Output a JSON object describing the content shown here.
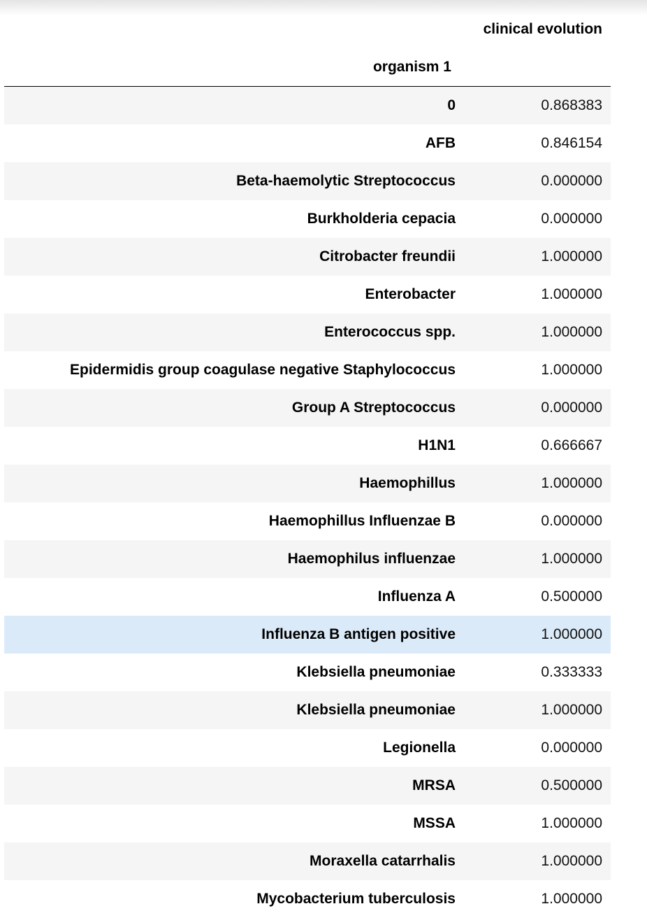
{
  "table": {
    "column_header": "clinical evolution",
    "index_name": "organism 1",
    "rows": [
      {
        "label": "0",
        "value": "0.868383"
      },
      {
        "label": "AFB",
        "value": "0.846154"
      },
      {
        "label": "Beta-haemolytic Streptococcus",
        "value": "0.000000"
      },
      {
        "label": "Burkholderia cepacia",
        "value": "0.000000"
      },
      {
        "label": "Citrobacter freundii",
        "value": "1.000000"
      },
      {
        "label": "Enterobacter",
        "value": "1.000000"
      },
      {
        "label": "Enterococcus spp.",
        "value": "1.000000"
      },
      {
        "label": "Epidermidis group coagulase negative Staphylococcus",
        "value": "1.000000"
      },
      {
        "label": "Group A Streptococcus",
        "value": "0.000000"
      },
      {
        "label": "H1N1",
        "value": "0.666667"
      },
      {
        "label": "Haemophillus",
        "value": "1.000000"
      },
      {
        "label": "Haemophillus Influenzae B",
        "value": "0.000000"
      },
      {
        "label": "Haemophilus influenzae",
        "value": "1.000000"
      },
      {
        "label": "Influenza A",
        "value": "0.500000"
      },
      {
        "label": "Influenza B antigen positive",
        "value": "1.000000"
      },
      {
        "label": "Klebsiella pneumoniae",
        "value": "0.333333"
      },
      {
        "label": "Klebsiella pneumoniae",
        "value": "1.000000"
      },
      {
        "label": "Legionella",
        "value": "0.000000"
      },
      {
        "label": "MRSA",
        "value": "0.500000"
      },
      {
        "label": "MSSA",
        "value": "1.000000"
      },
      {
        "label": "Moraxella catarrhalis",
        "value": "1.000000"
      },
      {
        "label": "Mycobacterium tuberculosis",
        "value": "1.000000"
      }
    ],
    "hovered_row": 14
  },
  "colors": {
    "stripe": "#f5f5f5",
    "hover": "#dbeaf8",
    "header_rule": "#000000"
  }
}
